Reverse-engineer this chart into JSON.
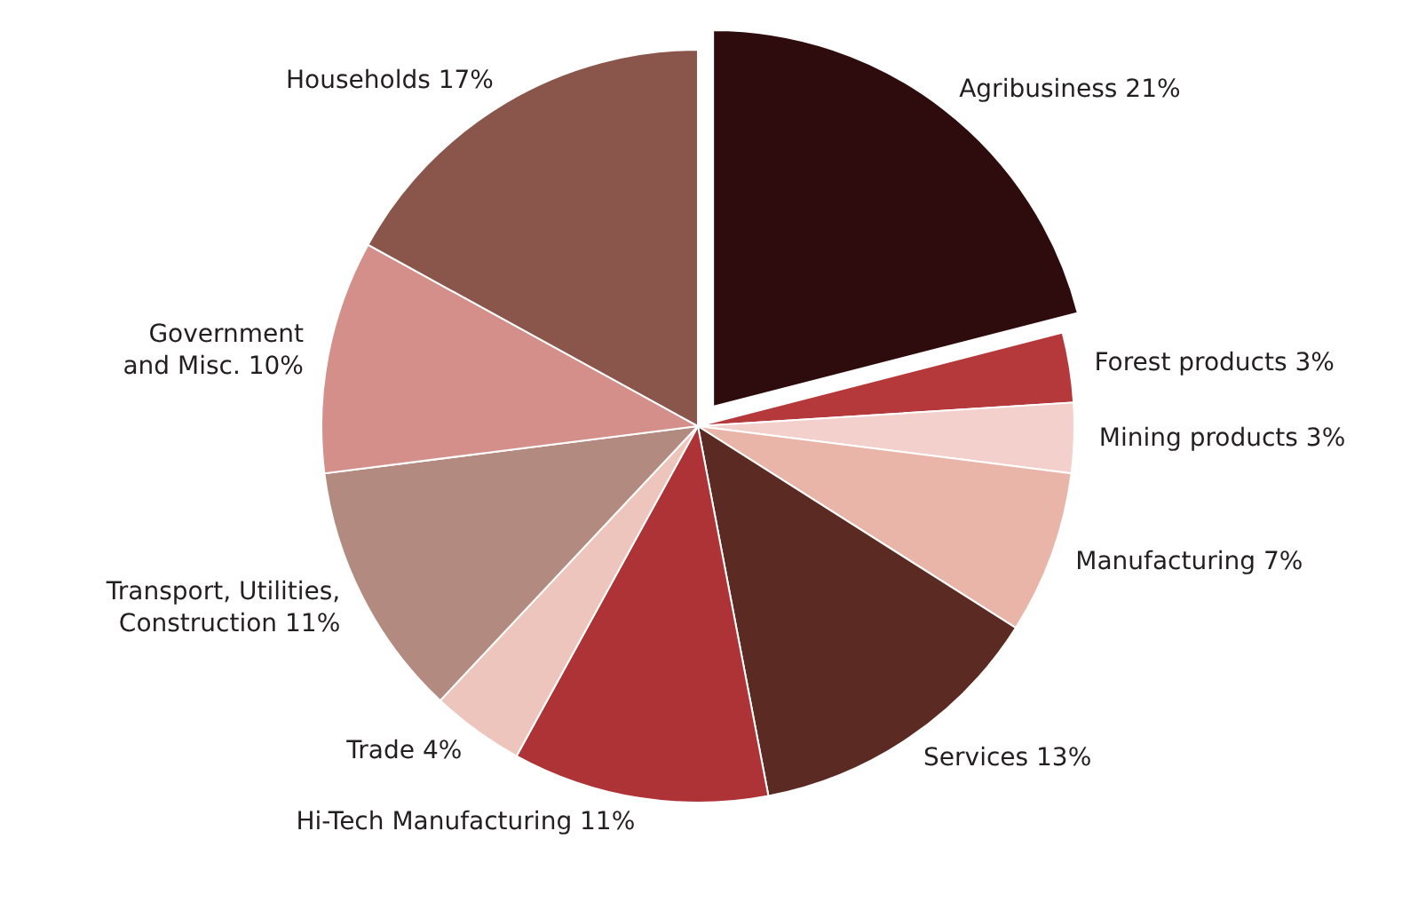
{
  "chart_data": {
    "type": "pie",
    "categories": [
      "Agribusiness",
      "Forest products",
      "Mining products",
      "Manufacturing",
      "Services",
      "Hi-Tech Manufacturing",
      "Trade",
      "Transport, Utilities,\nConstruction",
      "Government\nand Misc.",
      "Households"
    ],
    "values": [
      21,
      3,
      3,
      7,
      13,
      11,
      4,
      11,
      10,
      17
    ],
    "value_labels": [
      "21%",
      "3%",
      "3%",
      "7%",
      "13%",
      "11%",
      "4%",
      "11%",
      "10%",
      "17%"
    ],
    "colors": [
      "#2e0b0c",
      "#b5383a",
      "#f3d0cc",
      "#e9b5a9",
      "#5b2a22",
      "#ad3336",
      "#eec5bd",
      "#b38a80",
      "#d48f8b",
      "#8a564c"
    ]
  }
}
